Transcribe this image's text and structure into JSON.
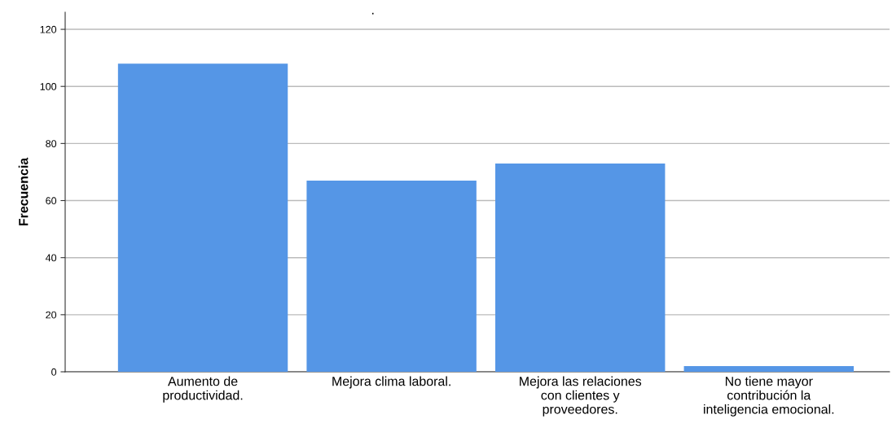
{
  "chart_data": {
    "type": "bar",
    "title": ".",
    "ylabel": "Frecuencia",
    "categories": [
      "Aumento de\nproductividad.",
      "Mejora clima laboral.",
      "Mejora las relaciones\ncon clientes y\nproveedores.",
      "No tiene mayor\ncontribución la\ninteligencia emocional."
    ],
    "values": [
      108,
      67,
      73,
      2
    ],
    "color": "#5596e6",
    "ylim": [
      0,
      126
    ],
    "yticks": [
      0,
      20,
      40,
      60,
      80,
      100,
      120
    ],
    "grid": "y",
    "legend": false
  }
}
